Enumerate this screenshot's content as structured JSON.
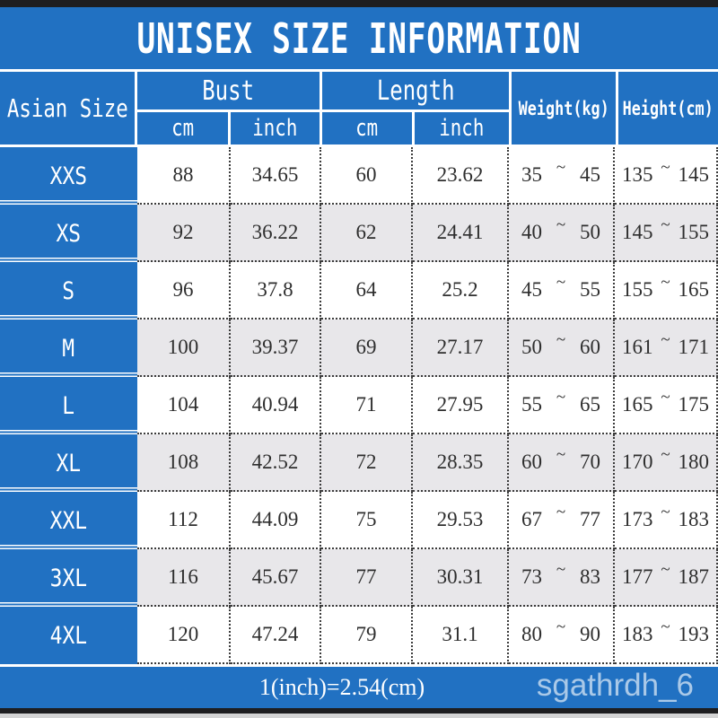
{
  "title": "UNISEX SIZE INFORMATION",
  "colors": {
    "blue": "#2171c2",
    "row-alt": "#e8e7ea",
    "dot": "#3b3b3b",
    "dark": "#1e1e20",
    "edge": "#d4d4d4",
    "num": "#2e2e2e",
    "watermark": "rgba(255,255,255,0.62)"
  },
  "table": {
    "headers": {
      "asian_size": "Asian Size",
      "bust": "Bust",
      "length": "Length",
      "weight": "Weight(kg)",
      "height": "Height(cm)",
      "cm": "cm",
      "inch": "inch"
    },
    "tilde": "~",
    "rows": [
      {
        "size": "XXS",
        "bust_cm": "88",
        "bust_inch": "34.65",
        "length_cm": "60",
        "length_inch": "23.62",
        "weight_min": "35",
        "weight_max": "45",
        "height_min": "135",
        "height_max": "145"
      },
      {
        "size": "XS",
        "bust_cm": "92",
        "bust_inch": "36.22",
        "length_cm": "62",
        "length_inch": "24.41",
        "weight_min": "40",
        "weight_max": "50",
        "height_min": "145",
        "height_max": "155"
      },
      {
        "size": "S",
        "bust_cm": "96",
        "bust_inch": "37.8",
        "length_cm": "64",
        "length_inch": "25.2",
        "weight_min": "45",
        "weight_max": "55",
        "height_min": "155",
        "height_max": "165"
      },
      {
        "size": "M",
        "bust_cm": "100",
        "bust_inch": "39.37",
        "length_cm": "69",
        "length_inch": "27.17",
        "weight_min": "50",
        "weight_max": "60",
        "height_min": "161",
        "height_max": "171"
      },
      {
        "size": "L",
        "bust_cm": "104",
        "bust_inch": "40.94",
        "length_cm": "71",
        "length_inch": "27.95",
        "weight_min": "55",
        "weight_max": "65",
        "height_min": "165",
        "height_max": "175"
      },
      {
        "size": "XL",
        "bust_cm": "108",
        "bust_inch": "42.52",
        "length_cm": "72",
        "length_inch": "28.35",
        "weight_min": "60",
        "weight_max": "70",
        "height_min": "170",
        "height_max": "180"
      },
      {
        "size": "XXL",
        "bust_cm": "112",
        "bust_inch": "44.09",
        "length_cm": "75",
        "length_inch": "29.53",
        "weight_min": "67",
        "weight_max": "77",
        "height_min": "173",
        "height_max": "183"
      },
      {
        "size": "3XL",
        "bust_cm": "116",
        "bust_inch": "45.67",
        "length_cm": "77",
        "length_inch": "30.31",
        "weight_min": "73",
        "weight_max": "83",
        "height_min": "177",
        "height_max": "187"
      },
      {
        "size": "4XL",
        "bust_cm": "120",
        "bust_inch": "47.24",
        "length_cm": "79",
        "length_inch": "31.1",
        "weight_min": "80",
        "weight_max": "90",
        "height_min": "183",
        "height_max": "193"
      }
    ]
  },
  "footer": {
    "formula": "1(inch)=2.54(cm)",
    "watermark": "sgathrdh_6"
  },
  "chart_data": {
    "type": "table",
    "title": "UNISEX SIZE INFORMATION",
    "columns": [
      "Asian Size",
      "Bust cm",
      "Bust inch",
      "Length cm",
      "Length inch",
      "Weight(kg)",
      "Height(cm)"
    ],
    "rows": [
      [
        "XXS",
        88,
        34.65,
        60,
        23.62,
        "35~45",
        "135~145"
      ],
      [
        "XS",
        92,
        36.22,
        62,
        24.41,
        "40~50",
        "145~155"
      ],
      [
        "S",
        96,
        37.8,
        64,
        25.2,
        "45~55",
        "155~165"
      ],
      [
        "M",
        100,
        39.37,
        69,
        27.17,
        "50~60",
        "161~171"
      ],
      [
        "L",
        104,
        40.94,
        71,
        27.95,
        "55~65",
        "165~175"
      ],
      [
        "XL",
        108,
        42.52,
        72,
        28.35,
        "60~70",
        "170~180"
      ],
      [
        "XXL",
        112,
        44.09,
        75,
        29.53,
        "67~77",
        "173~183"
      ],
      [
        "3XL",
        116,
        45.67,
        77,
        30.31,
        "73~83",
        "177~187"
      ],
      [
        "4XL",
        120,
        47.24,
        79,
        31.1,
        "80~90",
        "183~193"
      ]
    ],
    "note": "1(inch)=2.54(cm)"
  }
}
